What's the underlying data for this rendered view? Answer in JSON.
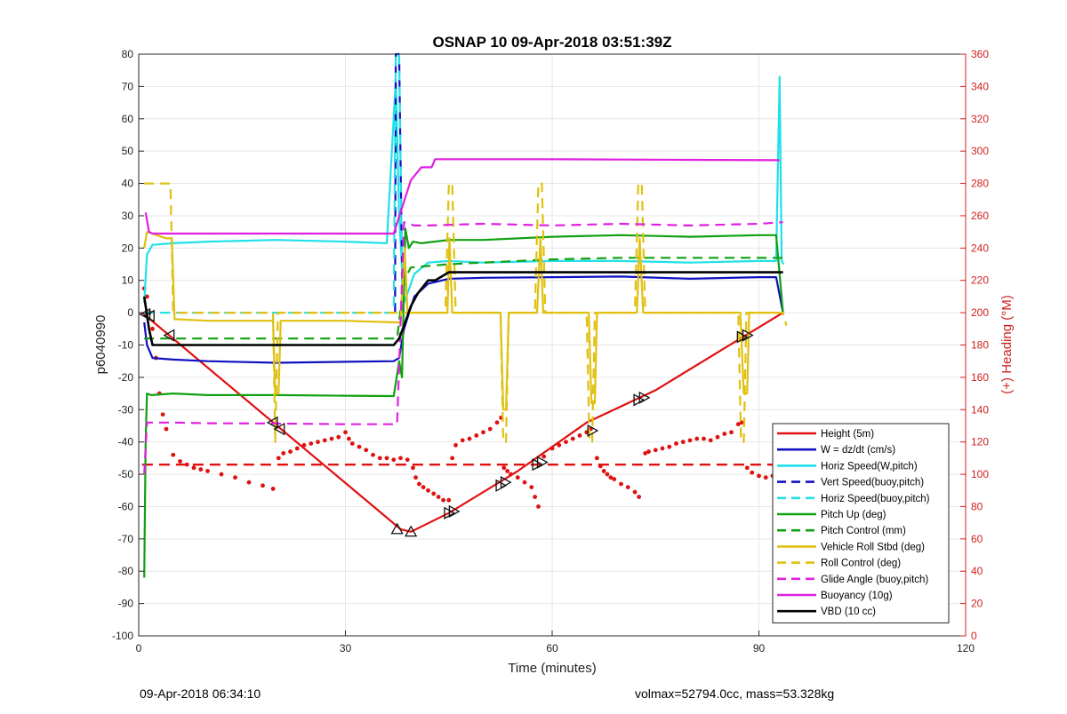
{
  "footer": {
    "left": "09-Apr-2018 06:34:10",
    "right": "volmax=52794.0cc, mass=53.328kg"
  },
  "chart_data": {
    "type": "line",
    "title": "OSNAP 10 09-Apr-2018 03:51:39Z",
    "xlabel": "Time (minutes)",
    "ylabel": "p6040990",
    "y2label": "(+) Heading (°M)",
    "xlim": [
      0,
      120
    ],
    "ylim": [
      -100,
      80
    ],
    "y2lim": [
      0,
      360
    ],
    "xticks": [
      0,
      30,
      60,
      90,
      120
    ],
    "yticks": [
      -100,
      -90,
      -80,
      -70,
      -60,
      -50,
      -40,
      -30,
      -20,
      -10,
      0,
      10,
      20,
      30,
      40,
      50,
      60,
      70,
      80
    ],
    "y2ticks": [
      0,
      20,
      40,
      60,
      80,
      100,
      120,
      140,
      160,
      180,
      200,
      220,
      240,
      260,
      280,
      300,
      320,
      340,
      360
    ],
    "grid": true,
    "legend_position": "bottom-right",
    "series": [
      {
        "name": "Height (5m)",
        "color": "#e01010",
        "style": "solid",
        "width": 2.2,
        "x": [
          0.5,
          38,
          39.5,
          45,
          55,
          65,
          75,
          85,
          93.5
        ],
        "y": [
          0,
          -67,
          -67.8,
          -62,
          -49,
          -34,
          -24,
          -11,
          0
        ],
        "markers": [
          {
            "x": 1,
            "y": -0.5,
            "dir": "left"
          },
          {
            "x": 1.6,
            "y": -1,
            "dir": "left"
          },
          {
            "x": 4.5,
            "y": -7,
            "dir": "left"
          },
          {
            "x": 19.5,
            "y": -34,
            "dir": "left"
          },
          {
            "x": 20.5,
            "y": -36,
            "dir": "left"
          },
          {
            "x": 37.5,
            "y": -67,
            "dir": "up"
          },
          {
            "x": 39.5,
            "y": -67.8,
            "dir": "up"
          },
          {
            "x": 45,
            "y": -62,
            "dir": "right"
          },
          {
            "x": 45.7,
            "y": -61.5,
            "dir": "right"
          },
          {
            "x": 52.5,
            "y": -53.5,
            "dir": "right"
          },
          {
            "x": 53.2,
            "y": -52.5,
            "dir": "right"
          },
          {
            "x": 57.8,
            "y": -47,
            "dir": "right"
          },
          {
            "x": 58.5,
            "y": -46.3,
            "dir": "right"
          },
          {
            "x": 65.8,
            "y": -36.5,
            "dir": "right"
          },
          {
            "x": 72.5,
            "y": -27,
            "dir": "right"
          },
          {
            "x": 73.3,
            "y": -26.3,
            "dir": "right"
          },
          {
            "x": 87.5,
            "y": -7.5,
            "dir": "right"
          },
          {
            "x": 88.3,
            "y": -7,
            "dir": "right"
          }
        ]
      },
      {
        "name": "W = dz/dt (cm/s)",
        "color": "#1010c0",
        "style": "solid",
        "width": 2.2,
        "x": [
          0.8,
          1.2,
          2,
          5,
          10,
          20,
          30,
          37,
          37.8,
          38.5,
          40,
          42,
          45,
          50,
          60,
          70,
          80,
          90,
          92.5,
          93.5
        ],
        "y": [
          -3,
          -10,
          -14,
          -14.5,
          -15,
          -15.5,
          -15.2,
          -15,
          -14,
          -5,
          5,
          9,
          10.5,
          10.8,
          11,
          11.2,
          10.5,
          11,
          11,
          0
        ]
      },
      {
        "name": "Horiz Speed(W,pitch)",
        "color": "#20e0e8",
        "style": "solid",
        "width": 2.2,
        "x": [
          0.8,
          1.2,
          2,
          5,
          10,
          20,
          30,
          36,
          37.3,
          37.8,
          38.5,
          40,
          42,
          45,
          50,
          60,
          70,
          80,
          90,
          92.5,
          93.0,
          93.3,
          93.6
        ],
        "y": [
          3,
          18,
          21,
          21.5,
          22,
          22.5,
          22,
          21.5,
          72,
          30,
          3,
          12,
          15.5,
          16,
          15.5,
          16,
          16,
          15.5,
          16,
          16,
          73,
          16,
          15
        ]
      },
      {
        "name": "Vert Speed(buoy,pitch)",
        "color": "#1010c0",
        "style": "dashed",
        "width": 2.2,
        "x": [
          37.2,
          37.3,
          37.8,
          38.3
        ],
        "y": [
          0,
          80,
          80,
          0
        ]
      },
      {
        "name": "Horiz Speed(buoy,pitch)",
        "color": "#20e0e8",
        "style": "dashed",
        "width": 2.2,
        "x": [
          0.8,
          36.5,
          37.0,
          37.3,
          37.8,
          38.3
        ],
        "y": [
          0,
          0,
          0,
          80,
          80,
          0
        ]
      },
      {
        "name": "Pitch Up (deg)",
        "color": "#10a010",
        "style": "solid",
        "width": 2.2,
        "x": [
          0.8,
          1.0,
          1.2,
          1.8,
          5,
          10,
          20,
          30,
          37,
          37.8,
          38.2,
          38.7,
          39.2,
          39.8,
          41,
          45,
          50,
          60,
          70,
          80,
          90,
          92.5,
          93.5
        ],
        "y": [
          -82,
          -40,
          -25,
          -25.5,
          -25,
          -25.5,
          -25.5,
          -25.7,
          -25.8,
          -15,
          -20,
          26,
          20,
          22,
          21.5,
          22.5,
          22.5,
          23.5,
          24,
          23.5,
          24,
          24,
          0
        ]
      },
      {
        "name": "Pitch Control (mm)",
        "color": "#10a010",
        "style": "dashed",
        "width": 2.2,
        "x": [
          0.8,
          1.2,
          37,
          37.5,
          38.5,
          39.5,
          45,
          50,
          60,
          70,
          80,
          93.5
        ],
        "y": [
          -8,
          -8,
          -8,
          -8,
          10,
          14,
          15,
          15.5,
          16.5,
          17,
          17,
          17
        ]
      },
      {
        "name": "Vehicle Roll Stbd (deg)",
        "color": "#e0c010",
        "style": "solid",
        "width": 2.2,
        "x": [
          0.8,
          1.2,
          4,
          4.8,
          5.2,
          10,
          19.5,
          19.8,
          20.3,
          20.6,
          30,
          37,
          38,
          38.6,
          39,
          40,
          44.8,
          45.1,
          45.5,
          46,
          52.5,
          52.9,
          53.3,
          53.7,
          57.8,
          58.3,
          58.7,
          59,
          65.3,
          65.7,
          66.2,
          66.5,
          72.3,
          72.7,
          73.2,
          73.5,
          87.3,
          87.8,
          88.3,
          88.6,
          93.5
        ],
        "y": [
          20,
          25,
          23,
          23,
          -2,
          -2.5,
          -2.5,
          -25,
          -25,
          -2.5,
          -2.5,
          -3,
          -3,
          20,
          0,
          0,
          0,
          23,
          0,
          0,
          0,
          -30,
          -30,
          0,
          0,
          23,
          0,
          0,
          0,
          -28,
          -28,
          0,
          0,
          23,
          0,
          0,
          0,
          -25,
          -25,
          0,
          0
        ]
      },
      {
        "name": "Roll Control (deg)",
        "color": "#e0c010",
        "style": "dashed",
        "width": 2.2,
        "x": [
          0.8,
          1.2,
          4.2,
          4.6,
          5,
          19.5,
          19.8,
          20.2,
          37,
          38.5,
          39,
          44.5,
          45,
          45.5,
          46,
          52.5,
          52.9,
          53.3,
          53.7,
          57.5,
          58,
          58.5,
          59,
          65,
          65.4,
          65.8,
          66.2,
          72,
          72.5,
          73,
          73.5,
          87,
          87.4,
          87.8,
          88.2,
          93.5,
          94
        ],
        "y": [
          40,
          40,
          40,
          40,
          0,
          0,
          -40,
          0,
          0,
          0,
          0,
          0,
          40,
          40,
          0,
          0,
          -40,
          -40,
          0,
          0,
          40,
          40,
          0,
          0,
          -40,
          -40,
          0,
          0,
          40,
          40,
          0,
          0,
          -40,
          -40,
          0,
          0,
          -4
        ]
      },
      {
        "name": "Glide Angle (buoy,pitch)",
        "color": "#e020e0",
        "style": "dashed",
        "width": 2.2,
        "x": [
          0.8,
          1.2,
          5,
          10,
          20,
          30,
          37,
          37.5,
          38.5,
          40,
          42,
          50,
          60,
          70,
          80,
          90,
          93.5
        ],
        "y": [
          -50,
          -34,
          -34,
          -34.2,
          -34.3,
          -34.5,
          -34.5,
          -34.5,
          28,
          27,
          27,
          27.5,
          27,
          27.5,
          27,
          27.5,
          28
        ]
      },
      {
        "name": "Buoyancy (10g)",
        "color": "#e020e0",
        "style": "solid",
        "width": 2.2,
        "x": [
          1,
          1.5,
          2,
          10,
          20,
          30,
          37,
          39.5,
          41,
          42.5,
          43,
          45,
          60,
          80,
          93
        ],
        "y": [
          31,
          25,
          24.5,
          24.5,
          24.5,
          24.5,
          24.5,
          41,
          45,
          45,
          47.5,
          47.5,
          47.5,
          47.3,
          47.2
        ]
      },
      {
        "name": "VBD (10 cc)",
        "color": "#000000",
        "style": "solid",
        "width": 2.6,
        "x": [
          0.8,
          1.5,
          2,
          10,
          20,
          30,
          37,
          37.8,
          38.5,
          39.5,
          40.5,
          42,
          43,
          45,
          60,
          80,
          93.5
        ],
        "y": [
          5,
          -5,
          -10,
          -10,
          -10,
          -10,
          -10,
          -8,
          -4,
          2,
          6,
          10,
          10,
          12.5,
          12.5,
          12.5,
          12.5
        ]
      }
    ],
    "heading": {
      "name": "Heading (°M)",
      "axis": "right",
      "color": "#e01010",
      "dots": [
        [
          0.8,
          215
        ],
        [
          1.2,
          210
        ],
        [
          1.6,
          200
        ],
        [
          2.0,
          190
        ],
        [
          2.5,
          172
        ],
        [
          3.0,
          150
        ],
        [
          3.5,
          137
        ],
        [
          4.0,
          128
        ],
        [
          5,
          112
        ],
        [
          6,
          108
        ],
        [
          7,
          106
        ],
        [
          8,
          104
        ],
        [
          9,
          103
        ],
        [
          10,
          102
        ],
        [
          12,
          100
        ],
        [
          14,
          98
        ],
        [
          16,
          95
        ],
        [
          18,
          93
        ],
        [
          19.5,
          91
        ],
        [
          20.3,
          110
        ],
        [
          21,
          113
        ],
        [
          22,
          114
        ],
        [
          23,
          116
        ],
        [
          24,
          118
        ],
        [
          25,
          119
        ],
        [
          26,
          120
        ],
        [
          27,
          121
        ],
        [
          28,
          122
        ],
        [
          29,
          123
        ],
        [
          30,
          126
        ],
        [
          30.5,
          122
        ],
        [
          31,
          119
        ],
        [
          32,
          117
        ],
        [
          33,
          115
        ],
        [
          34,
          112
        ],
        [
          35,
          110
        ],
        [
          36,
          110
        ],
        [
          37,
          109
        ],
        [
          38,
          110
        ],
        [
          39,
          109
        ],
        [
          39.8,
          104
        ],
        [
          40.2,
          98
        ],
        [
          40.7,
          94
        ],
        [
          41.3,
          92
        ],
        [
          42,
          90
        ],
        [
          42.8,
          88
        ],
        [
          43.5,
          86
        ],
        [
          44.2,
          84
        ],
        [
          45,
          84
        ],
        [
          45.5,
          110
        ],
        [
          46,
          118
        ],
        [
          47,
          121
        ],
        [
          48,
          122
        ],
        [
          49,
          124
        ],
        [
          50,
          126
        ],
        [
          51,
          128
        ],
        [
          52,
          132
        ],
        [
          52.6,
          135
        ],
        [
          53,
          104
        ],
        [
          53.5,
          102
        ],
        [
          54,
          100
        ],
        [
          55,
          98
        ],
        [
          56,
          95
        ],
        [
          57,
          92
        ],
        [
          57.5,
          86
        ],
        [
          58,
          80
        ],
        [
          58.8,
          111
        ],
        [
          60,
          116
        ],
        [
          61,
          118
        ],
        [
          62,
          120
        ],
        [
          63,
          122
        ],
        [
          64,
          124
        ],
        [
          65,
          126
        ],
        [
          65.6,
          128
        ],
        [
          66.5,
          110
        ],
        [
          67,
          105
        ],
        [
          67.5,
          102
        ],
        [
          68,
          100
        ],
        [
          68.5,
          98
        ],
        [
          69,
          97
        ],
        [
          70,
          94
        ],
        [
          71,
          92
        ],
        [
          72,
          89
        ],
        [
          72.6,
          86
        ],
        [
          73.5,
          113
        ],
        [
          74,
          114
        ],
        [
          75,
          115
        ],
        [
          76,
          116
        ],
        [
          77,
          117
        ],
        [
          78,
          119
        ],
        [
          79,
          120
        ],
        [
          80,
          121
        ],
        [
          81,
          122
        ],
        [
          82,
          122
        ],
        [
          83,
          121
        ],
        [
          84,
          123
        ],
        [
          85,
          125
        ],
        [
          86,
          126
        ],
        [
          87,
          131
        ],
        [
          87.5,
          132
        ],
        [
          88.3,
          104
        ],
        [
          89,
          101
        ],
        [
          90,
          99
        ],
        [
          91,
          98
        ],
        [
          92,
          99
        ],
        [
          93,
          101
        ]
      ],
      "mean_line": {
        "value": 106,
        "style": "dashed",
        "x": [
          0.5,
          94
        ]
      }
    }
  }
}
